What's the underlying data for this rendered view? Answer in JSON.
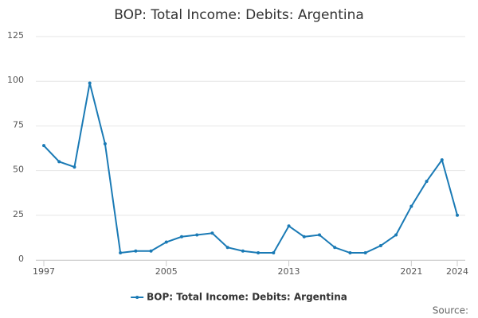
{
  "chart_data": {
    "type": "line",
    "title": "BOP: Total Income: Debits: Argentina",
    "x": [
      1997,
      1998,
      1999,
      2000,
      2001,
      2002,
      2003,
      2004,
      2005,
      2006,
      2007,
      2008,
      2009,
      2010,
      2011,
      2012,
      2013,
      2014,
      2015,
      2016,
      2017,
      2018,
      2019,
      2020,
      2021,
      2022,
      2023,
      2024
    ],
    "series": [
      {
        "name": "BOP: Total Income: Debits: Argentina",
        "color": "#1a7ab5",
        "values": [
          64,
          55,
          52,
          99,
          65,
          4,
          5,
          5,
          10,
          13,
          14,
          15,
          7,
          5,
          4,
          4,
          19,
          13,
          14,
          7,
          4,
          4,
          8,
          14,
          30,
          44,
          56,
          25
        ]
      }
    ],
    "xlim": [
      1997,
      2024
    ],
    "xticks": [
      1997,
      2005,
      2013,
      2021,
      2024
    ],
    "ylim": [
      0,
      125
    ],
    "yticks": [
      0,
      25,
      50,
      75,
      100,
      125
    ],
    "grid": true,
    "legend": "bottom",
    "source": "Source:"
  }
}
